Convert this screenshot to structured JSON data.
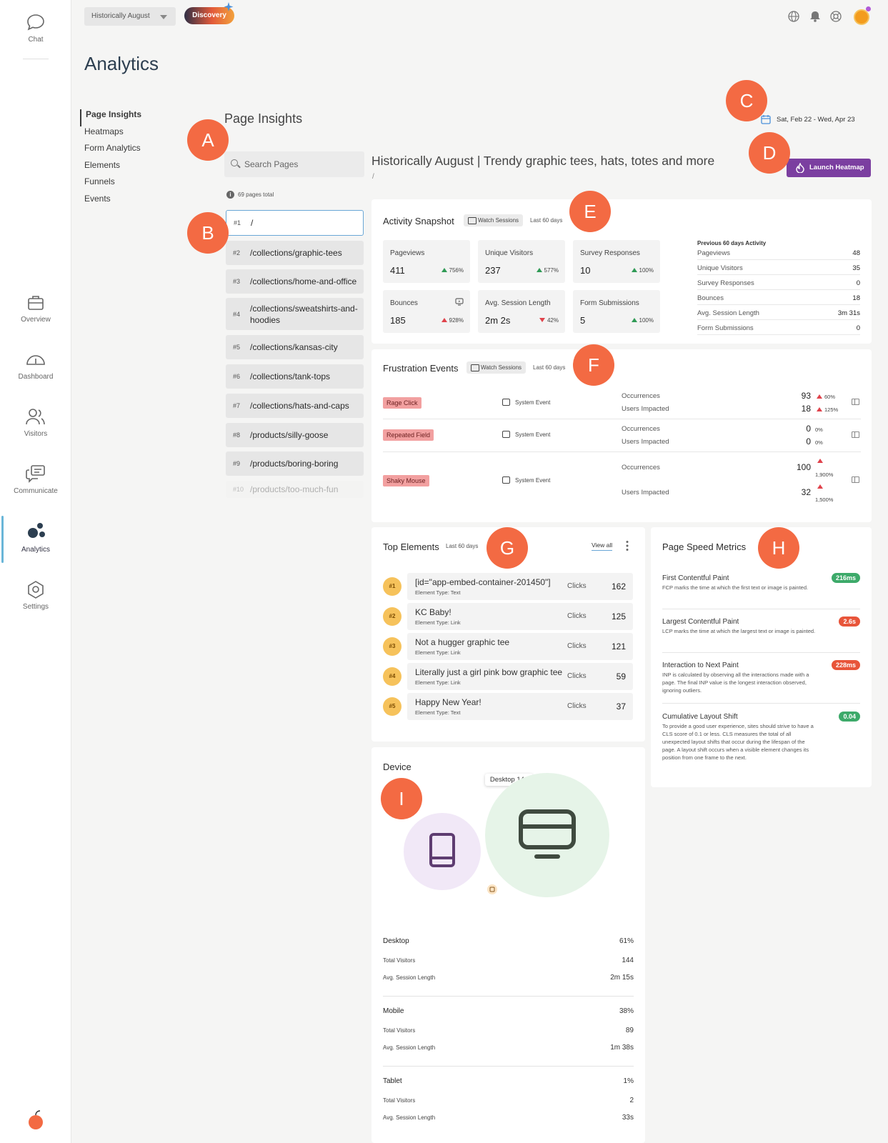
{
  "rail": {
    "chat": "Chat",
    "overview": "Overview",
    "dashboard": "Dashboard",
    "visitors": "Visitors",
    "communicate": "Communicate",
    "analytics": "Analytics",
    "settings": "Settings"
  },
  "topbar": {
    "site_select": "Historically August",
    "discovery": "Discovery"
  },
  "page_title": "Analytics",
  "subnav": [
    "Page Insights",
    "Heatmaps",
    "Form Analytics",
    "Elements",
    "Funnels",
    "Events"
  ],
  "insights": {
    "title": "Page Insights",
    "search_placeholder": "Search Pages",
    "pages_total": "69 pages total",
    "pages": [
      {
        "n": "#1",
        "path": "/"
      },
      {
        "n": "#2",
        "path": "/collections/graphic-tees"
      },
      {
        "n": "#3",
        "path": "/collections/home-and-office"
      },
      {
        "n": "#4",
        "path": "/collections/sweatshirts-and-hoodies"
      },
      {
        "n": "#5",
        "path": "/collections/kansas-city"
      },
      {
        "n": "#6",
        "path": "/collections/tank-tops"
      },
      {
        "n": "#7",
        "path": "/collections/hats-and-caps"
      },
      {
        "n": "#8",
        "path": "/products/silly-goose"
      },
      {
        "n": "#9",
        "path": "/products/boring-boring"
      },
      {
        "n": "#10",
        "path": "/products/too-much-fun"
      }
    ]
  },
  "date_range": "Sat, Feb 22 - Wed, Apr 23",
  "page_heading": "Historically August | Trendy graphic tees, hats, totes and more",
  "page_path": "/",
  "launch_heatmap": "Launch Heatmap",
  "activity": {
    "title": "Activity Snapshot",
    "watch": "Watch Sessions",
    "period": "Last 60 days",
    "tiles": [
      {
        "label": "Pageviews",
        "value": "411",
        "change": "756%",
        "dir": "up-green"
      },
      {
        "label": "Unique Visitors",
        "value": "237",
        "change": "577%",
        "dir": "up-green"
      },
      {
        "label": "Survey Responses",
        "value": "10",
        "change": "100%",
        "dir": "up-green"
      },
      {
        "label": "Bounces",
        "value": "185",
        "change": "928%",
        "dir": "up-red"
      },
      {
        "label": "Avg. Session Length",
        "value": "2m 2s",
        "change": "42%",
        "dir": "down-red"
      },
      {
        "label": "Form Submissions",
        "value": "5",
        "change": "100%",
        "dir": "up-green"
      }
    ],
    "previous_title": "Previous 60 days Activity",
    "previous": [
      {
        "label": "Pageviews",
        "value": "48"
      },
      {
        "label": "Unique Visitors",
        "value": "35"
      },
      {
        "label": "Survey Responses",
        "value": "0"
      },
      {
        "label": "Bounces",
        "value": "18"
      },
      {
        "label": "Avg. Session Length",
        "value": "3m 31s"
      },
      {
        "label": "Form Submissions",
        "value": "0"
      }
    ]
  },
  "frustration": {
    "title": "Frustration Events",
    "watch": "Watch Sessions",
    "period": "Last 60 days",
    "occ_label": "Occurrences",
    "users_label": "Users Impacted",
    "system_event": "System Event",
    "events": [
      {
        "name": "Rage Click",
        "occ": "93",
        "occ_pct": "60%",
        "users": "18",
        "users_pct": "125%"
      },
      {
        "name": "Repeated Field",
        "occ": "0",
        "occ_pct": "0%",
        "users": "0",
        "users_pct": "0%"
      },
      {
        "name": "Shaky Mouse",
        "occ": "100",
        "occ_pct": "1,900%",
        "users": "32",
        "users_pct": "1,500%"
      }
    ]
  },
  "top_elements": {
    "title": "Top Elements",
    "period": "Last 60 days",
    "view_all": "View all",
    "clicks_label": "Clicks",
    "items": [
      {
        "rank": "#1",
        "name": "[id=\"app-embed-container-201450\"]",
        "type": "Element Type: Text",
        "clicks": "162"
      },
      {
        "rank": "#2",
        "name": "KC Baby!",
        "type": "Element Type: Link",
        "clicks": "125"
      },
      {
        "rank": "#3",
        "name": "Not a hugger graphic tee",
        "type": "Element Type: Link",
        "clicks": "121"
      },
      {
        "rank": "#4",
        "name": "Literally just a girl pink bow graphic tee",
        "type": "Element Type: Link",
        "clicks": "59"
      },
      {
        "rank": "#5",
        "name": "Happy New Year!",
        "type": "Element Type: Text",
        "clicks": "37"
      }
    ]
  },
  "page_speed": {
    "title": "Page Speed Metrics",
    "metrics": [
      {
        "title": "First Contentful Paint",
        "desc": "FCP marks the time at which the first text or image is painted.",
        "badge": "216ms",
        "color": "#3daa6a"
      },
      {
        "title": "Largest Contentful Paint",
        "desc": "LCP marks the time at which the largest text or image is painted.",
        "badge": "2.6s",
        "color": "#e8553a"
      },
      {
        "title": "Interaction to Next Paint",
        "desc": "INP is calculated by observing all the interactions made with a page. The final INP value is the longest interaction observed, ignoring outliers.",
        "badge": "228ms",
        "color": "#e8553a"
      },
      {
        "title": "Cumulative Layout Shift",
        "desc": "To provide a good user experience, sites should strive to have a CLS score of 0.1 or less. CLS measures the total of all unexpected layout shifts that occur during the lifespan of the page. A layout shift occurs when a visible element changes its position from one frame to the next.",
        "badge": "0.04",
        "color": "#3daa6a"
      }
    ]
  },
  "device": {
    "title": "Device",
    "tooltip": "Desktop 144",
    "total_visitors_label": "Total Visitors",
    "avg_session_label": "Avg. Session Length",
    "groups": [
      {
        "name": "Desktop",
        "pct": "61%",
        "visitors": "144",
        "avg": "2m 15s"
      },
      {
        "name": "Mobile",
        "pct": "38%",
        "visitors": "89",
        "avg": "1m 38s"
      },
      {
        "name": "Tablet",
        "pct": "1%",
        "visitors": "2",
        "avg": "33s"
      }
    ]
  },
  "markers": [
    "A",
    "B",
    "C",
    "D",
    "E",
    "F",
    "G",
    "H",
    "I"
  ],
  "colors": {
    "accent": "#7b3fa0",
    "marker": "#f36a43",
    "brand_orange": "#f39c1e"
  }
}
